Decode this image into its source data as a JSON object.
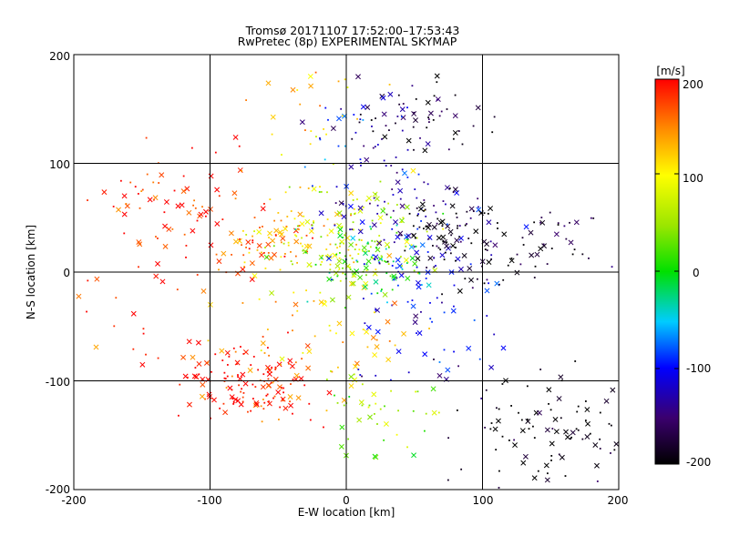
{
  "chart_data": {
    "type": "scatter",
    "title": "Tromsø 20171107 17:52:00–17:53:43",
    "subtitle": "RwPretec (8p) EXPERIMENTAL SKYMAP",
    "xlabel": "E-W location [km]",
    "ylabel": "N-S location [km]",
    "xlim": [
      -200,
      200
    ],
    "ylim": [
      -200,
      200
    ],
    "x_ticks": [
      "-200",
      "-100",
      "0",
      "100",
      "200"
    ],
    "y_ticks": [
      "-200",
      "-100",
      "0",
      "100",
      "200"
    ],
    "grid": true,
    "markers": "dot and x",
    "colorbar": {
      "label": "[m/s]",
      "range": [
        -200,
        200
      ],
      "ticks": [
        "200",
        "100",
        "0",
        "-100",
        "-200"
      ],
      "colormap": "rainbow (black → purple → blue → cyan → green → yellow → orange → red)"
    },
    "clusters": [
      {
        "x": -70,
        "y": -105,
        "velocity": 190,
        "count": 140
      },
      {
        "x": -130,
        "y": 60,
        "velocity": 185,
        "count": 75
      },
      {
        "x": -150,
        "y": -50,
        "velocity": 185,
        "count": 25
      },
      {
        "x": -60,
        "y": 25,
        "velocity": 175,
        "count": 55
      },
      {
        "x": -20,
        "y": 25,
        "velocity": 120,
        "count": 80
      },
      {
        "x": 5,
        "y": 30,
        "velocity": 60,
        "count": 110
      },
      {
        "x": 20,
        "y": 10,
        "velocity": 0,
        "count": 70
      },
      {
        "x": 45,
        "y": -10,
        "velocity": -100,
        "count": 60
      },
      {
        "x": 35,
        "y": 55,
        "velocity": -120,
        "count": 85
      },
      {
        "x": 80,
        "y": 40,
        "velocity": -190,
        "count": 75
      },
      {
        "x": 110,
        "y": 15,
        "velocity": -200,
        "count": 35
      },
      {
        "x": 150,
        "y": -150,
        "velocity": -200,
        "count": 95
      },
      {
        "x": 50,
        "y": 140,
        "velocity": -180,
        "count": 55
      },
      {
        "x": 20,
        "y": 120,
        "velocity": -110,
        "count": 40
      },
      {
        "x": -20,
        "y": -60,
        "velocity": 130,
        "count": 55
      },
      {
        "x": 25,
        "y": -130,
        "velocity": 50,
        "count": 45
      },
      {
        "x": -10,
        "y": 150,
        "velocity": 130,
        "count": 25
      },
      {
        "x": 70,
        "y": -70,
        "velocity": -120,
        "count": 25
      },
      {
        "x": 160,
        "y": 40,
        "velocity": -170,
        "count": 25
      }
    ]
  }
}
